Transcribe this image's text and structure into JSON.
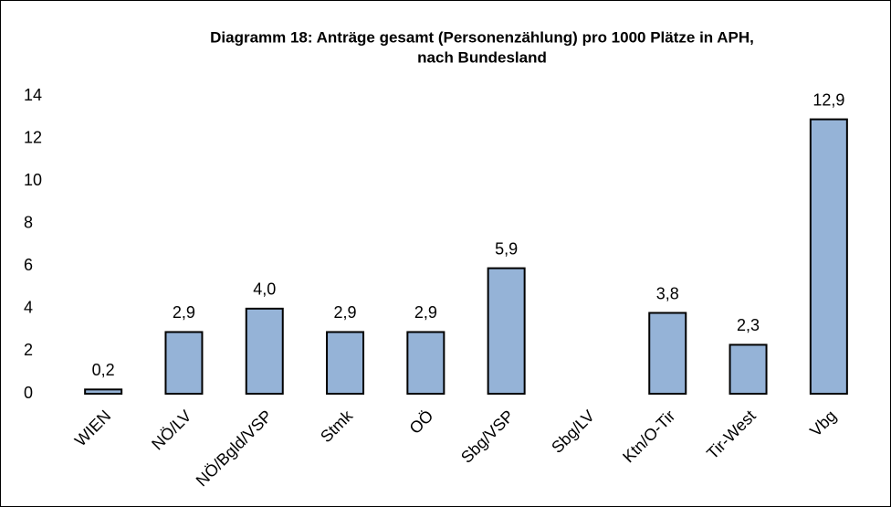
{
  "chart_data": {
    "type": "bar",
    "title": [
      "Diagramm 18: Anträge gesamt (Personenzählung) pro 1000 Plätze in APH,",
      "nach Bundesland"
    ],
    "categories": [
      "WIEN",
      "NÖ/LV",
      "NÖ/Bgld/VSP",
      "Stmk",
      "OÖ",
      "Sbg/VSP",
      "Sbg/LV",
      "Ktn/O-Tir",
      "Tir-West",
      "Vbg"
    ],
    "values": [
      0.2,
      2.9,
      4.0,
      2.9,
      2.9,
      5.9,
      null,
      3.8,
      2.3,
      12.9
    ],
    "value_labels": [
      "0,2",
      "2,9",
      "4,0",
      "2,9",
      "2,9",
      "5,9",
      null,
      "3,8",
      "2,3",
      "12,9"
    ],
    "color": "#95b3d7",
    "ylim": [
      0,
      14
    ],
    "yticks": [
      0,
      2,
      4,
      6,
      8,
      10,
      12,
      14
    ],
    "grid": false
  }
}
